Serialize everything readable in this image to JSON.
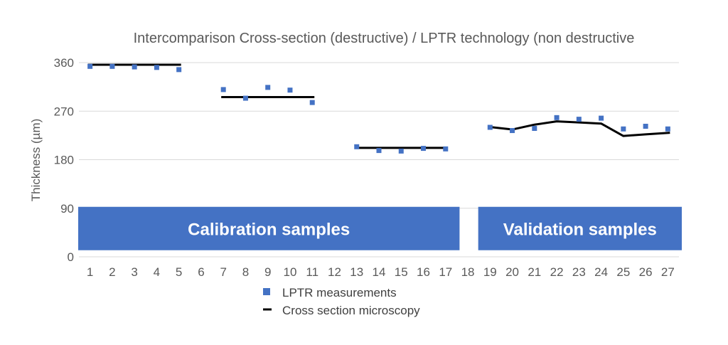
{
  "chart_data": {
    "type": "scatter",
    "title": "Intercomparison Cross-section (destructive) / LPTR technology (non destructive",
    "xlabel": "",
    "ylabel": "Thickness (µm)",
    "ylim": [
      0,
      360
    ],
    "yticks": [
      0,
      90,
      180,
      270,
      360
    ],
    "categories": [
      "1",
      "2",
      "3",
      "4",
      "5",
      "6",
      "7",
      "8",
      "9",
      "10",
      "11",
      "12",
      "13",
      "14",
      "15",
      "16",
      "17",
      "18",
      "19",
      "20",
      "21",
      "22",
      "23",
      "24",
      "25",
      "26",
      "27"
    ],
    "grid": true,
    "legend_position": "bottom",
    "series": [
      {
        "name": "LPTR measurements",
        "kind": "markers",
        "color": "#4472c4",
        "points": [
          {
            "x": "1",
            "y": 353
          },
          {
            "x": "2",
            "y": 353
          },
          {
            "x": "3",
            "y": 352
          },
          {
            "x": "4",
            "y": 351
          },
          {
            "x": "5",
            "y": 347
          },
          {
            "x": "7",
            "y": 310
          },
          {
            "x": "8",
            "y": 294
          },
          {
            "x": "9",
            "y": 314
          },
          {
            "x": "10",
            "y": 309
          },
          {
            "x": "11",
            "y": 286
          },
          {
            "x": "13",
            "y": 204
          },
          {
            "x": "14",
            "y": 197
          },
          {
            "x": "15",
            "y": 196
          },
          {
            "x": "16",
            "y": 201
          },
          {
            "x": "17",
            "y": 200
          },
          {
            "x": "19",
            "y": 240
          },
          {
            "x": "20",
            "y": 234
          },
          {
            "x": "21",
            "y": 238
          },
          {
            "x": "22",
            "y": 258
          },
          {
            "x": "23",
            "y": 255
          },
          {
            "x": "24",
            "y": 257
          },
          {
            "x": "25",
            "y": 237
          },
          {
            "x": "26",
            "y": 242
          },
          {
            "x": "27",
            "y": 237
          }
        ]
      },
      {
        "name": "Cross section microscopy",
        "kind": "line",
        "color": "#000000",
        "segments": [
          [
            {
              "x": "1",
              "y": 356
            },
            {
              "x": "2",
              "y": 356
            },
            {
              "x": "3",
              "y": 356
            },
            {
              "x": "4",
              "y": 356
            },
            {
              "x": "5",
              "y": 356
            }
          ],
          [
            {
              "x": "7",
              "y": 296
            },
            {
              "x": "8",
              "y": 296
            },
            {
              "x": "9",
              "y": 296
            },
            {
              "x": "10",
              "y": 296
            },
            {
              "x": "11",
              "y": 296
            }
          ],
          [
            {
              "x": "13",
              "y": 202
            },
            {
              "x": "14",
              "y": 202
            },
            {
              "x": "15",
              "y": 202
            },
            {
              "x": "16",
              "y": 202
            },
            {
              "x": "17",
              "y": 202
            }
          ],
          [
            {
              "x": "19",
              "y": 241
            },
            {
              "x": "20",
              "y": 236
            },
            {
              "x": "21",
              "y": 245
            },
            {
              "x": "22",
              "y": 251
            },
            {
              "x": "23",
              "y": 249
            },
            {
              "x": "24",
              "y": 247
            },
            {
              "x": "25",
              "y": 224
            },
            {
              "x": "26",
              "y": 227
            },
            {
              "x": "27",
              "y": 230
            }
          ]
        ]
      }
    ],
    "bands": [
      {
        "label": "Calibration samples",
        "from": "1",
        "to": "17",
        "color": "#4472c4"
      },
      {
        "label": "Validation samples",
        "from": "19",
        "to": "27",
        "color": "#4472c4"
      }
    ]
  }
}
